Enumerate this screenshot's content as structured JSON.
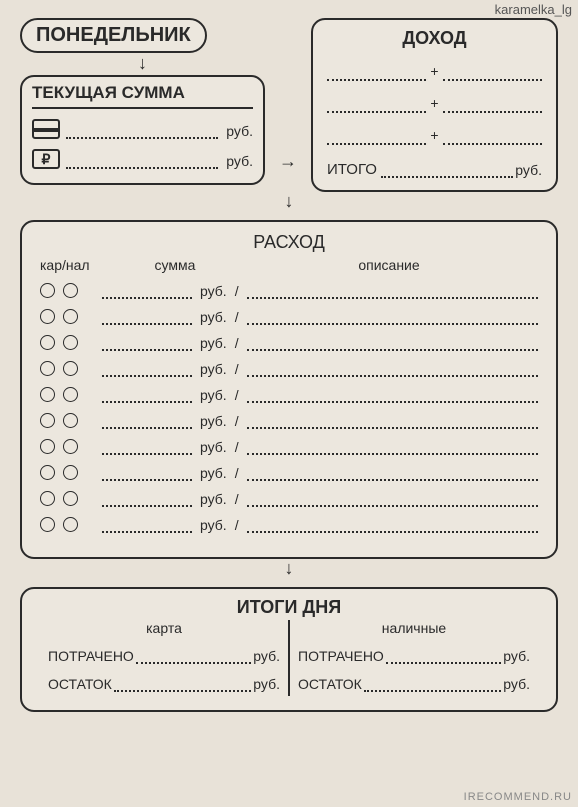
{
  "watermarks": {
    "top": "karamelka_lg",
    "bottom": "IRECOMMEND.RU"
  },
  "day": "ПОНЕДЕЛЬНИК",
  "balance": {
    "title": "ТЕКУЩАЯ СУММА",
    "currency": "руб.",
    "ruble_symbol": "₽"
  },
  "income": {
    "title": "ДОХОД",
    "total_label": "ИТОГО",
    "currency": "руб.",
    "line_count": 3
  },
  "expense": {
    "title": "РАСХОД",
    "headers": {
      "karnal": "кар/нал",
      "summa": "сумма",
      "desc": "описание"
    },
    "currency": "руб.",
    "row_count": 10
  },
  "summary": {
    "title": "ИТОГИ ДНЯ",
    "cols": {
      "card": "карта",
      "cash": "наличные"
    },
    "spent_label": "ПОТРАЧЕНО",
    "remain_label": "ОСТАТОК",
    "currency": "руб."
  }
}
